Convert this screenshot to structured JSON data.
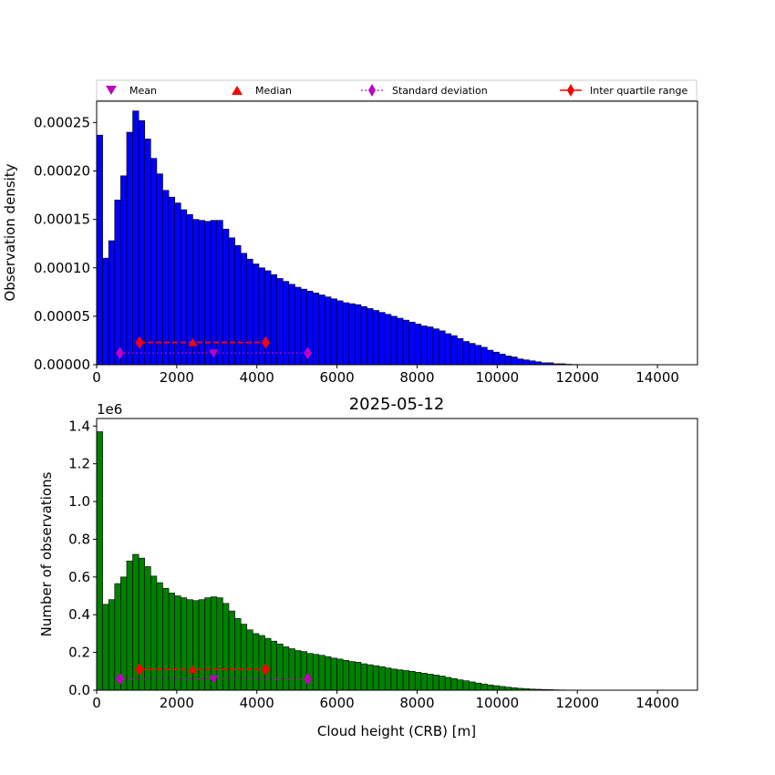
{
  "figure_title": "2025-05-12",
  "legend": {
    "placement": "top, spanning width, above upper panel",
    "entries": [
      {
        "label": "Mean",
        "marker": "triangle-down",
        "color": "#bf00bf"
      },
      {
        "label": "Median",
        "marker": "triangle-up",
        "color": "#ff0000"
      },
      {
        "label": "Standard deviation",
        "marker": "diamond-dotted-line",
        "color": "#bf00bf"
      },
      {
        "label": "Inter quartile range",
        "marker": "diamond-solid-line",
        "color": "#ff0000"
      }
    ]
  },
  "chart_data": [
    {
      "type": "bar",
      "panel": "top",
      "title": "",
      "xlabel": "",
      "ylabel": "Observation density",
      "xlim": [
        0,
        15000
      ],
      "ylim": [
        0,
        0.000272
      ],
      "bin_width": 150,
      "bar_color": "#0000ff",
      "edge_color": "#000000",
      "x_ticks": [
        "0",
        "2000",
        "4000",
        "6000",
        "8000",
        "10000",
        "12000",
        "14000"
      ],
      "y_ticks": [
        "0.00000",
        "0.00005",
        "0.00010",
        "0.00015",
        "0.00020",
        "0.00025"
      ],
      "values": [
        0.000237,
        0.00011,
        0.000128,
        0.00017,
        0.000195,
        0.00024,
        0.000262,
        0.000252,
        0.000233,
        0.000213,
        0.000197,
        0.00018,
        0.000173,
        0.000167,
        0.00016,
        0.000155,
        0.00015,
        0.000149,
        0.000148,
        0.000149,
        0.000149,
        0.00014,
        0.000131,
        0.000123,
        0.000115,
        0.000109,
        0.000104,
        0.0001,
        9.7e-05,
        9.3e-05,
        8.9e-05,
        8.6e-05,
        8.3e-05,
        8e-05,
        7.8e-05,
        7.6e-05,
        7.4e-05,
        7.2e-05,
        7e-05,
        6.8e-05,
        6.6e-05,
        6.4e-05,
        6.3e-05,
        6.2e-05,
        6e-05,
        5.8e-05,
        5.6e-05,
        5.4e-05,
        5.2e-05,
        5e-05,
        4.8e-05,
        4.6e-05,
        4.4e-05,
        4.2e-05,
        4e-05,
        3.9e-05,
        3.7e-05,
        3.5e-05,
        3.2e-05,
        3e-05,
        2.7e-05,
        2.4e-05,
        2.2e-05,
        2e-05,
        1.8e-05,
        1.5e-05,
        1.3e-05,
        1.1e-05,
        9e-06,
        8e-06,
        6e-06,
        5e-06,
        4e-06,
        3e-06,
        2e-06,
        2e-06,
        1e-06,
        1e-06,
        5e-07,
        3e-07,
        2e-07,
        1e-07,
        1e-07,
        1e-07,
        5e-08,
        3e-08,
        2e-08,
        1e-08,
        1e-08,
        1e-08,
        1e-08,
        1e-08,
        1e-08,
        1e-08,
        1e-08,
        1e-08,
        1e-08,
        1e-08,
        1e-08,
        1e-08
      ],
      "stats": {
        "mean": {
          "x": 2920,
          "y": 1.2e-05
        },
        "median": {
          "x": 2400,
          "y": 2.3e-05
        },
        "standard_deviation": {
          "x_range": [
            580,
            5270
          ],
          "y": 1.2e-05
        },
        "inter_quartile_range": {
          "x_range": [
            1070,
            4220
          ],
          "y": 2.3e-05
        }
      }
    },
    {
      "type": "bar",
      "panel": "bottom",
      "title": "",
      "xlabel": "Cloud height (CRB) [m]",
      "ylabel": "Number of observations",
      "offset_label": "1e6",
      "xlim": [
        0,
        15000
      ],
      "ylim": [
        0,
        1.44
      ],
      "bin_width": 150,
      "bar_color": "#008000",
      "edge_color": "#000000",
      "x_ticks": [
        "0",
        "2000",
        "4000",
        "6000",
        "8000",
        "10000",
        "12000",
        "14000"
      ],
      "y_ticks": [
        "0.0",
        "0.2",
        "0.4",
        "0.6",
        "0.8",
        "1.0",
        "1.2",
        "1.4"
      ],
      "values": [
        1.37,
        0.455,
        0.48,
        0.565,
        0.6,
        0.685,
        0.72,
        0.7,
        0.655,
        0.605,
        0.57,
        0.54,
        0.515,
        0.5,
        0.49,
        0.48,
        0.475,
        0.48,
        0.49,
        0.495,
        0.49,
        0.46,
        0.42,
        0.38,
        0.35,
        0.32,
        0.3,
        0.29,
        0.275,
        0.26,
        0.245,
        0.23,
        0.22,
        0.21,
        0.205,
        0.195,
        0.19,
        0.185,
        0.178,
        0.17,
        0.165,
        0.158,
        0.152,
        0.148,
        0.14,
        0.135,
        0.13,
        0.125,
        0.118,
        0.112,
        0.108,
        0.104,
        0.1,
        0.095,
        0.09,
        0.085,
        0.08,
        0.075,
        0.068,
        0.062,
        0.055,
        0.05,
        0.044,
        0.038,
        0.033,
        0.028,
        0.024,
        0.02,
        0.016,
        0.013,
        0.01,
        0.008,
        0.006,
        0.005,
        0.004,
        0.003,
        0.002,
        0.0015,
        0.001,
        0.0008,
        0.0005,
        0.0004,
        0.0003,
        0.0002,
        0.0002,
        0.0001,
        0.0001,
        0.0001,
        0.0001,
        0.0001,
        0.0001,
        0.0001,
        0.0001,
        0.0001,
        0.0001,
        0.0001,
        0.0001,
        0.0001,
        0.0001,
        0.0001
      ],
      "stats": {
        "mean": {
          "x": 2920,
          "y": 0.06
        },
        "median": {
          "x": 2400,
          "y": 0.11
        },
        "standard_deviation": {
          "x_range": [
            580,
            5270
          ],
          "y": 0.06
        },
        "inter_quartile_range": {
          "x_range": [
            1070,
            4220
          ],
          "y": 0.11
        }
      }
    }
  ]
}
